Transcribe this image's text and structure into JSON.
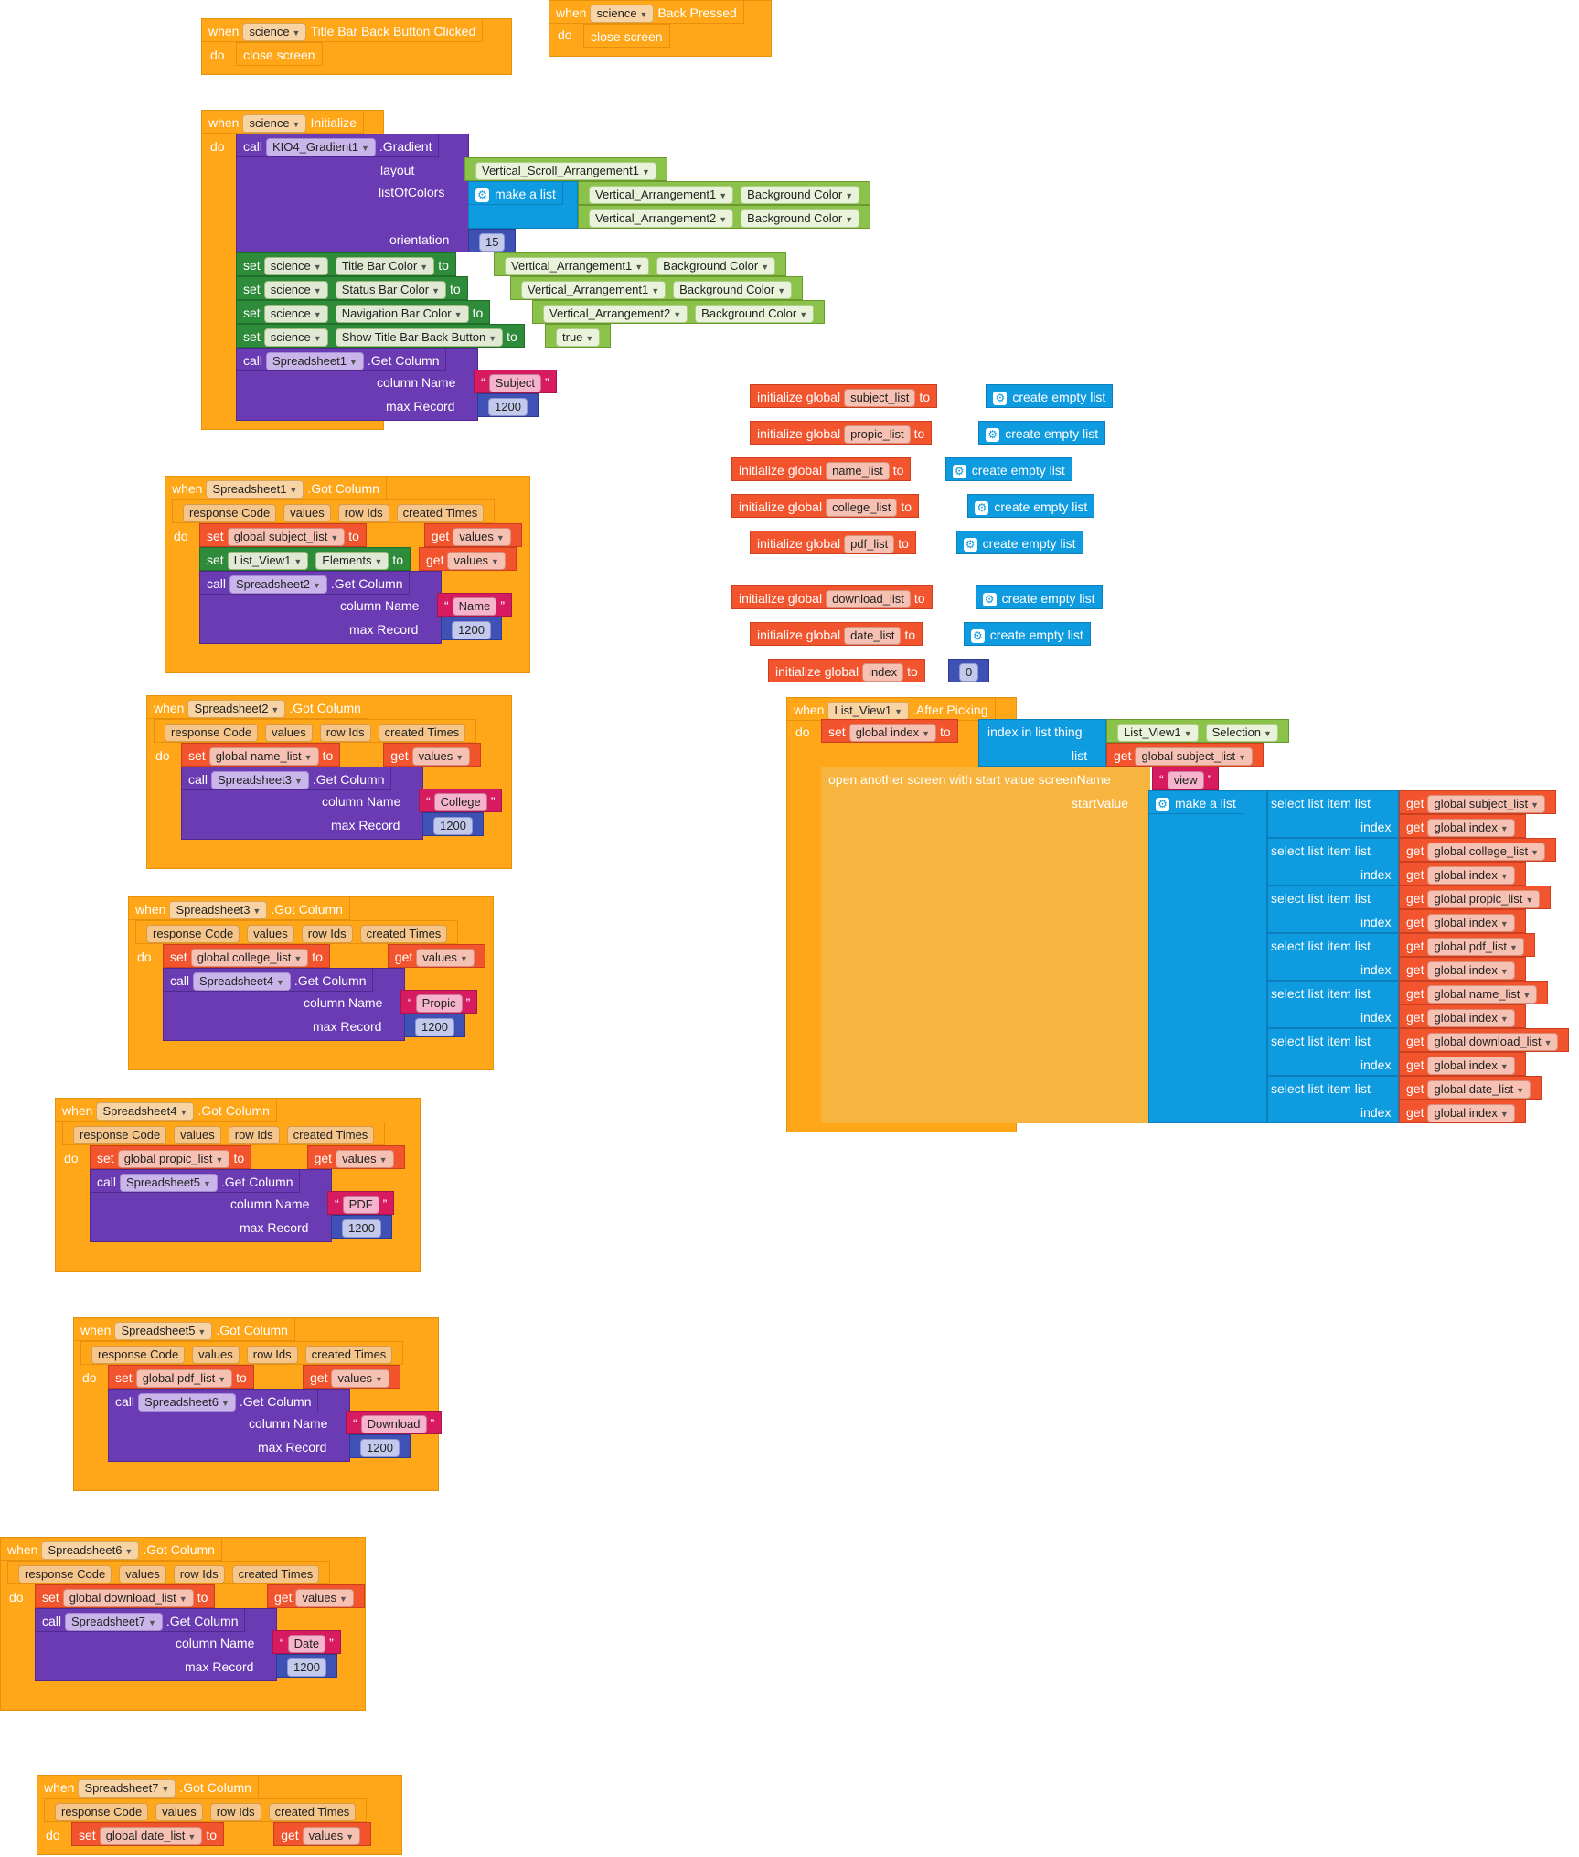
{
  "blocks": {
    "back_clicked": {
      "when": "when",
      "component": "science",
      "event": "Title Bar Back Button Clicked",
      "do": "do",
      "action": "close screen"
    },
    "back_pressed": {
      "when": "when",
      "component": "science",
      "event": "Back Pressed",
      "do": "do",
      "action": "close screen"
    },
    "initialize": {
      "when": "when",
      "component": "science",
      "event": "Initialize",
      "do": "do",
      "call": "call",
      "gradient_component": "KIO4_Gradient1",
      "method": ".Gradient",
      "layout_label": "layout",
      "layout_value": "Vertical_Scroll_Arrangement1",
      "list_label": "listOfColors",
      "make_list": "make a list",
      "item1_comp": "Vertical_Arrangement1",
      "item1_prop": "Background Color",
      "item2_comp": "Vertical_Arrangement2",
      "item2_prop": "Background Color",
      "orientation_label": "orientation",
      "orientation_value": "15",
      "sets": [
        {
          "set": "set",
          "comp": "science",
          "prop": "Title Bar Color",
          "to": "to",
          "vcomp": "Vertical_Arrangement1",
          "vprop": "Background Color"
        },
        {
          "set": "set",
          "comp": "science",
          "prop": "Status Bar Color",
          "to": "to",
          "vcomp": "Vertical_Arrangement1",
          "vprop": "Background Color"
        },
        {
          "set": "set",
          "comp": "science",
          "prop": "Navigation Bar Color",
          "to": "to",
          "vcomp": "Vertical_Arrangement2",
          "vprop": "Background Color"
        },
        {
          "set": "set",
          "comp": "science",
          "prop": "Show Title Bar Back Button",
          "to": "to",
          "value": "true"
        }
      ],
      "sheet_call": "call",
      "sheet": "Spreadsheet1",
      "sheet_method": ".Get Column",
      "column_label": "column Name",
      "column_value": "Subject",
      "max_label": "max Record",
      "max_value": "1200"
    },
    "got_column_params": {
      "p1": "response Code",
      "p2": "values",
      "p3": "row Ids",
      "p4": "created Times"
    },
    "sheet_events": [
      {
        "sheet": "Spreadsheet1",
        "var": "global subject_list",
        "extra_set": true,
        "next_sheet": "Spreadsheet2",
        "column": "Name"
      },
      {
        "sheet": "Spreadsheet2",
        "var": "global name_list",
        "next_sheet": "Spreadsheet3",
        "column": "College"
      },
      {
        "sheet": "Spreadsheet3",
        "var": "global college_list",
        "next_sheet": "Spreadsheet4",
        "column": "Propic"
      },
      {
        "sheet": "Spreadsheet4",
        "var": "global propic_list",
        "next_sheet": "Spreadsheet5",
        "column": "PDF"
      },
      {
        "sheet": "Spreadsheet5",
        "var": "global pdf_list",
        "next_sheet": "Spreadsheet6",
        "column": "Download"
      },
      {
        "sheet": "Spreadsheet6",
        "var": "global download_list",
        "next_sheet": "Spreadsheet7",
        "column": "Date"
      },
      {
        "sheet": "Spreadsheet7",
        "var": "global date_list"
      }
    ],
    "common": {
      "when": "when",
      "got_column": ".Got Column",
      "do": "do",
      "set": "set",
      "to": "to",
      "get": "get",
      "values": "values",
      "call": "call",
      "get_column": ".Get Column",
      "column_name": "column Name",
      "max_record": "max Record",
      "max_value": "1200",
      "list_view": "List_View1",
      "elements": "Elements",
      "quote": "\""
    },
    "globals": [
      {
        "label": "initialize global",
        "name": "subject_list",
        "to": "to",
        "value": "create empty list"
      },
      {
        "label": "initialize global",
        "name": "propic_list",
        "to": "to",
        "value": "create empty list"
      },
      {
        "label": "initialize global",
        "name": "name_list",
        "to": "to",
        "value": "create empty list"
      },
      {
        "label": "initialize global",
        "name": "college_list",
        "to": "to",
        "value": "create empty list"
      },
      {
        "label": "initialize global",
        "name": "pdf_list",
        "to": "to",
        "value": "create empty list"
      },
      {
        "label": "initialize global",
        "name": "download_list",
        "to": "to",
        "value": "create empty list"
      },
      {
        "label": "initialize global",
        "name": "date_list",
        "to": "to",
        "value": "create empty list"
      },
      {
        "label": "initialize global",
        "name": "index",
        "to": "to",
        "value": "0"
      }
    ],
    "after_picking": {
      "when": "when",
      "component": "List_View1",
      "event": ".After Picking",
      "do": "do",
      "set": "set",
      "var": "global index",
      "to": "to",
      "index_in_list": "index in list  thing",
      "selection_comp": "List_View1",
      "selection_prop": "Selection",
      "list_label": "list",
      "get": "get",
      "list_var": "global subject_list",
      "open_screen": "open another screen with start value  screenName",
      "screen_name": "view",
      "start_value": "startValue",
      "make_list": "make a list",
      "select_label": "select list item  list",
      "index_label": "index",
      "index_var": "global index",
      "items": [
        "global subject_list",
        "global college_list",
        "global propic_list",
        "global pdf_list",
        "global name_list",
        "global download_list",
        "global date_list"
      ]
    }
  }
}
